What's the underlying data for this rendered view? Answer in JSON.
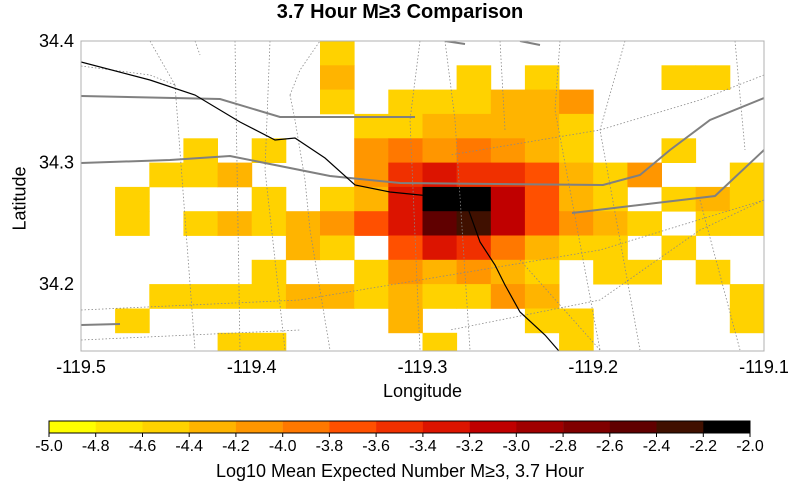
{
  "title": "3.7 Hour M≥3 Comparison",
  "chart_data": {
    "type": "heatmap",
    "title": "3.7 Hour M≥3 Comparison",
    "xlabel": "Longitude",
    "ylabel": "Latitude",
    "xlim": [
      -119.5,
      -119.1
    ],
    "ylim": [
      34.145,
      34.4
    ],
    "x_ticks": [
      "-119.5",
      "-119.4",
      "-119.3",
      "-119.2",
      "-119.1"
    ],
    "y_ticks": [
      "34.4",
      "34.3",
      "34.2"
    ],
    "cell_size_deg": 0.02,
    "cells": [
      [
        -119.35,
        34.39,
        -4.6
      ],
      [
        -119.35,
        34.37,
        -4.4
      ],
      [
        -119.27,
        34.37,
        -4.6
      ],
      [
        -119.23,
        34.37,
        -4.6
      ],
      [
        -119.15,
        34.37,
        -4.6
      ],
      [
        -119.13,
        34.37,
        -4.6
      ],
      [
        -119.35,
        34.35,
        -4.6
      ],
      [
        -119.31,
        34.35,
        -4.6
      ],
      [
        -119.29,
        34.35,
        -4.6
      ],
      [
        -119.27,
        34.35,
        -4.6
      ],
      [
        -119.25,
        34.35,
        -4.4
      ],
      [
        -119.23,
        34.35,
        -4.4
      ],
      [
        -119.21,
        34.35,
        -4.2
      ],
      [
        -119.33,
        34.33,
        -4.6
      ],
      [
        -119.31,
        34.33,
        -4.6
      ],
      [
        -119.29,
        34.33,
        -4.4
      ],
      [
        -119.27,
        34.33,
        -4.4
      ],
      [
        -119.25,
        34.33,
        -4.4
      ],
      [
        -119.23,
        34.33,
        -4.4
      ],
      [
        -119.21,
        34.33,
        -4.6
      ],
      [
        -119.43,
        34.31,
        -4.6
      ],
      [
        -119.39,
        34.31,
        -4.6
      ],
      [
        -119.33,
        34.31,
        -4.2
      ],
      [
        -119.31,
        34.31,
        -4.0
      ],
      [
        -119.29,
        34.31,
        -4.2
      ],
      [
        -119.27,
        34.31,
        -4.0
      ],
      [
        -119.25,
        34.31,
        -4.2
      ],
      [
        -119.23,
        34.31,
        -4.4
      ],
      [
        -119.21,
        34.31,
        -4.6
      ],
      [
        -119.15,
        34.31,
        -4.6
      ],
      [
        -119.45,
        34.29,
        -4.6
      ],
      [
        -119.43,
        34.29,
        -4.6
      ],
      [
        -119.41,
        34.29,
        -4.4
      ],
      [
        -119.33,
        34.29,
        -4.2
      ],
      [
        -119.31,
        34.29,
        -3.6
      ],
      [
        -119.29,
        34.29,
        -3.4
      ],
      [
        -119.27,
        34.29,
        -3.6
      ],
      [
        -119.25,
        34.29,
        -3.6
      ],
      [
        -119.23,
        34.29,
        -3.8
      ],
      [
        -119.21,
        34.29,
        -4.4
      ],
      [
        -119.19,
        34.29,
        -4.6
      ],
      [
        -119.17,
        34.29,
        -4.2
      ],
      [
        -119.11,
        34.29,
        -4.6
      ],
      [
        -119.47,
        34.27,
        -4.6
      ],
      [
        -119.39,
        34.27,
        -4.6
      ],
      [
        -119.35,
        34.27,
        -4.6
      ],
      [
        -119.33,
        34.27,
        -4.4
      ],
      [
        -119.31,
        34.27,
        -3.4
      ],
      [
        -119.29,
        34.27,
        -2.2
      ],
      [
        -119.27,
        34.27,
        -2.0
      ],
      [
        -119.25,
        34.27,
        -3.2
      ],
      [
        -119.23,
        34.27,
        -3.8
      ],
      [
        -119.21,
        34.27,
        -4.4
      ],
      [
        -119.19,
        34.27,
        -4.6
      ],
      [
        -119.15,
        34.27,
        -4.6
      ],
      [
        -119.13,
        34.27,
        -4.4
      ],
      [
        -119.11,
        34.27,
        -4.6
      ],
      [
        -119.47,
        34.25,
        -4.6
      ],
      [
        -119.43,
        34.25,
        -4.6
      ],
      [
        -119.41,
        34.25,
        -4.4
      ],
      [
        -119.39,
        34.25,
        -4.6
      ],
      [
        -119.37,
        34.25,
        -4.4
      ],
      [
        -119.35,
        34.25,
        -4.2
      ],
      [
        -119.33,
        34.25,
        -3.8
      ],
      [
        -119.31,
        34.25,
        -3.4
      ],
      [
        -119.29,
        34.25,
        -2.6
      ],
      [
        -119.27,
        34.25,
        -2.4
      ],
      [
        -119.25,
        34.25,
        -3.2
      ],
      [
        -119.23,
        34.25,
        -3.8
      ],
      [
        -119.21,
        34.25,
        -4.2
      ],
      [
        -119.19,
        34.25,
        -4.4
      ],
      [
        -119.17,
        34.25,
        -4.6
      ],
      [
        -119.13,
        34.25,
        -4.6
      ],
      [
        -119.11,
        34.25,
        -4.6
      ],
      [
        -119.37,
        34.23,
        -4.4
      ],
      [
        -119.35,
        34.23,
        -4.6
      ],
      [
        -119.31,
        34.23,
        -3.8
      ],
      [
        -119.29,
        34.23,
        -3.4
      ],
      [
        -119.27,
        34.23,
        -3.6
      ],
      [
        -119.25,
        34.23,
        -4.0
      ],
      [
        -119.23,
        34.23,
        -4.4
      ],
      [
        -119.21,
        34.23,
        -4.6
      ],
      [
        -119.19,
        34.23,
        -4.6
      ],
      [
        -119.15,
        34.23,
        -4.6
      ],
      [
        -119.39,
        34.21,
        -4.6
      ],
      [
        -119.33,
        34.21,
        -4.6
      ],
      [
        -119.31,
        34.21,
        -4.2
      ],
      [
        -119.29,
        34.21,
        -4.4
      ],
      [
        -119.27,
        34.21,
        -4.2
      ],
      [
        -119.25,
        34.21,
        -4.4
      ],
      [
        -119.23,
        34.21,
        -4.6
      ],
      [
        -119.19,
        34.21,
        -4.6
      ],
      [
        -119.17,
        34.21,
        -4.6
      ],
      [
        -119.13,
        34.21,
        -4.6
      ],
      [
        -119.45,
        34.19,
        -4.6
      ],
      [
        -119.43,
        34.19,
        -4.6
      ],
      [
        -119.41,
        34.19,
        -4.6
      ],
      [
        -119.39,
        34.19,
        -4.6
      ],
      [
        -119.37,
        34.19,
        -4.4
      ],
      [
        -119.35,
        34.19,
        -4.4
      ],
      [
        -119.33,
        34.19,
        -4.6
      ],
      [
        -119.31,
        34.19,
        -4.4
      ],
      [
        -119.29,
        34.19,
        -4.6
      ],
      [
        -119.27,
        34.19,
        -4.6
      ],
      [
        -119.25,
        34.19,
        -4.2
      ],
      [
        -119.23,
        34.19,
        -4.4
      ],
      [
        -119.11,
        34.19,
        -4.6
      ],
      [
        -119.47,
        34.17,
        -4.6
      ],
      [
        -119.31,
        34.17,
        -4.4
      ],
      [
        -119.23,
        34.17,
        -4.6
      ],
      [
        -119.21,
        34.17,
        -4.6
      ],
      [
        -119.11,
        34.17,
        -4.6
      ],
      [
        -119.41,
        34.15,
        -4.6
      ],
      [
        -119.39,
        34.15,
        -4.6
      ],
      [
        -119.29,
        34.15,
        -4.6
      ],
      [
        -119.21,
        34.15,
        -4.6
      ]
    ],
    "colorbar": {
      "title": "Log10 Mean Expected Number M≥3, 3.7 Hour",
      "labels": [
        "-5.0",
        "-4.8",
        "-4.6",
        "-4.4",
        "-4.2",
        "-4.0",
        "-3.8",
        "-3.6",
        "-3.4",
        "-3.2",
        "-3.0",
        "-2.8",
        "-2.6",
        "-2.4",
        "-2.2",
        "-2.0"
      ],
      "colors": [
        "#ffff00",
        "#ffe600",
        "#ffd200",
        "#ffb400",
        "#ff9600",
        "#ff7800",
        "#ff5000",
        "#f03000",
        "#dc1400",
        "#c00000",
        "#a00000",
        "#800000",
        "#600000",
        "#401000",
        "#000000"
      ]
    }
  }
}
